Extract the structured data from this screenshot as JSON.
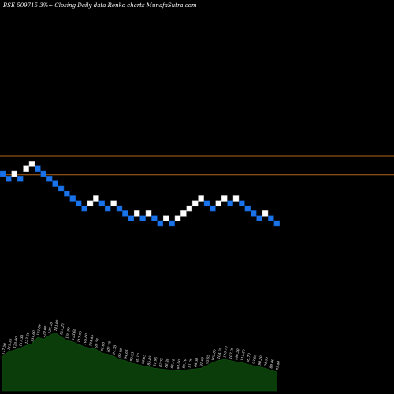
{
  "chart_data": {
    "type": "renko",
    "title": "BSE 509715 3%~ Closing Daily data Renko charts MunafaSutra.com",
    "colors": {
      "up_brick": "#ffffff",
      "down_brick": "#1a73e8",
      "ref_line": "#b5651d",
      "volume": "#0a3d0a"
    },
    "reference_levels": [
      0.585,
      0.655
    ],
    "bricks": [
      {
        "level": 0,
        "dir": "down"
      },
      {
        "level": -1,
        "dir": "down"
      },
      {
        "level": 0,
        "dir": "up"
      },
      {
        "level": -1,
        "dir": "down"
      },
      {
        "level": 1,
        "dir": "up"
      },
      {
        "level": 2,
        "dir": "up"
      },
      {
        "level": 1,
        "dir": "down"
      },
      {
        "level": 0,
        "dir": "down"
      },
      {
        "level": -1,
        "dir": "down"
      },
      {
        "level": -2,
        "dir": "down"
      },
      {
        "level": -3,
        "dir": "down"
      },
      {
        "level": -4,
        "dir": "down"
      },
      {
        "level": -5,
        "dir": "down"
      },
      {
        "level": -6,
        "dir": "down"
      },
      {
        "level": -7,
        "dir": "down"
      },
      {
        "level": -6,
        "dir": "up"
      },
      {
        "level": -5,
        "dir": "up"
      },
      {
        "level": -6,
        "dir": "down"
      },
      {
        "level": -7,
        "dir": "down"
      },
      {
        "level": -6,
        "dir": "up"
      },
      {
        "level": -7,
        "dir": "down"
      },
      {
        "level": -8,
        "dir": "down"
      },
      {
        "level": -9,
        "dir": "down"
      },
      {
        "level": -8,
        "dir": "up"
      },
      {
        "level": -9,
        "dir": "down"
      },
      {
        "level": -8,
        "dir": "up"
      },
      {
        "level": -9,
        "dir": "down"
      },
      {
        "level": -10,
        "dir": "down"
      },
      {
        "level": -9,
        "dir": "up"
      },
      {
        "level": -10,
        "dir": "down"
      },
      {
        "level": -9,
        "dir": "up"
      },
      {
        "level": -8,
        "dir": "up"
      },
      {
        "level": -7,
        "dir": "up"
      },
      {
        "level": -6,
        "dir": "up"
      },
      {
        "level": -5,
        "dir": "up"
      },
      {
        "level": -6,
        "dir": "down"
      },
      {
        "level": -7,
        "dir": "down"
      },
      {
        "level": -6,
        "dir": "up"
      },
      {
        "level": -5,
        "dir": "up"
      },
      {
        "level": -6,
        "dir": "down"
      },
      {
        "level": -5,
        "dir": "up"
      },
      {
        "level": -6,
        "dir": "down"
      },
      {
        "level": -7,
        "dir": "down"
      },
      {
        "level": -8,
        "dir": "down"
      },
      {
        "level": -9,
        "dir": "down"
      },
      {
        "level": -8,
        "dir": "up"
      },
      {
        "level": -9,
        "dir": "down"
      },
      {
        "level": -10,
        "dir": "down"
      }
    ],
    "volume": [
      {
        "label": "117.50",
        "value": 0.55
      },
      {
        "label": "119.35",
        "value": 0.62
      },
      {
        "label": "125.00",
        "value": 0.65
      },
      {
        "label": "117.30",
        "value": 0.68
      },
      {
        "label": "123.60",
        "value": 0.72
      },
      {
        "label": "131.60",
        "value": 0.75
      },
      {
        "label": "121.00",
        "value": 0.85
      },
      {
        "label": "129.00",
        "value": 0.82
      },
      {
        "label": "137.10",
        "value": 0.88
      },
      {
        "label": "141.80",
        "value": 0.92
      },
      {
        "label": "127.20",
        "value": 0.86
      },
      {
        "label": "120.90",
        "value": 0.8
      },
      {
        "label": "123.60",
        "value": 0.78
      },
      {
        "label": "117.90",
        "value": 0.74
      },
      {
        "label": "105.60",
        "value": 0.7
      },
      {
        "label": "104.85",
        "value": 0.68
      },
      {
        "label": "99.55",
        "value": 0.66
      },
      {
        "label": "98.60",
        "value": 0.6
      },
      {
        "label": "102.20",
        "value": 0.58
      },
      {
        "label": "97.70",
        "value": 0.55
      },
      {
        "label": "99.90",
        "value": 0.5
      },
      {
        "label": "94.65",
        "value": 0.48
      },
      {
        "label": "92.95",
        "value": 0.44
      },
      {
        "label": "88.10",
        "value": 0.42
      },
      {
        "label": "90.65",
        "value": 0.4
      },
      {
        "label": "85.85",
        "value": 0.38
      },
      {
        "label": "81.95",
        "value": 0.36
      },
      {
        "label": "82.75",
        "value": 0.35
      },
      {
        "label": "86.30",
        "value": 0.34
      },
      {
        "label": "85.10",
        "value": 0.33
      },
      {
        "label": "84.90",
        "value": 0.32
      },
      {
        "label": "85.70",
        "value": 0.33
      },
      {
        "label": "91.00",
        "value": 0.34
      },
      {
        "label": "88.30",
        "value": 0.35
      },
      {
        "label": "91.60",
        "value": 0.36
      },
      {
        "label": "95.95",
        "value": 0.4
      },
      {
        "label": "101.80",
        "value": 0.45
      },
      {
        "label": "104.20",
        "value": 0.48
      },
      {
        "label": "110.70",
        "value": 0.5
      },
      {
        "label": "107.90",
        "value": 0.48
      },
      {
        "label": "106.50",
        "value": 0.46
      },
      {
        "label": "111.20",
        "value": 0.45
      },
      {
        "label": "98.70",
        "value": 0.42
      },
      {
        "label": "93.85",
        "value": 0.4
      },
      {
        "label": "90.20",
        "value": 0.38
      },
      {
        "label": "94.60",
        "value": 0.36
      },
      {
        "label": "89.00",
        "value": 0.33
      },
      {
        "label": "85.40",
        "value": 0.3
      }
    ]
  }
}
